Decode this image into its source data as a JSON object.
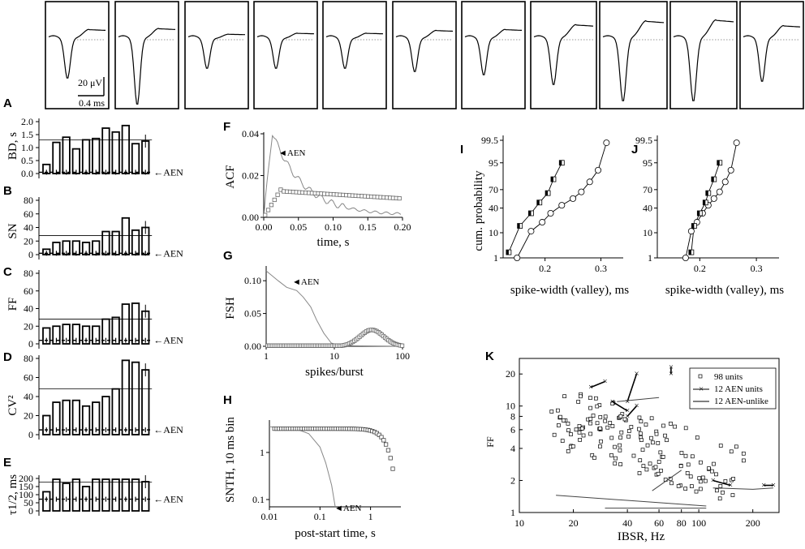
{
  "figure": {
    "panel_labels": {
      "A": "A",
      "B": "B",
      "C": "C",
      "D": "D",
      "E": "E",
      "F": "F",
      "G": "G",
      "H": "H",
      "I": "I",
      "J": "J",
      "K": "K"
    },
    "waveforms": {
      "count": 11,
      "depth": [
        0.6,
        1.0,
        0.45,
        0.45,
        0.45,
        0.5,
        0.55,
        0.7,
        0.95,
        0.95,
        0.65
      ],
      "overshoot": [
        0.2,
        0.22,
        0.1,
        0.12,
        0.12,
        0.18,
        0.2,
        0.3,
        0.38,
        0.4,
        0.28
      ],
      "scale_voltage": "20 μV",
      "scale_time": "0.4 ms"
    },
    "aen_label": "AEN",
    "bar_panels": [
      {
        "id": "A",
        "ylabel": "BD, s",
        "ticks": [
          "0.0",
          "0.5",
          "1.0",
          "1.5",
          "2.0"
        ],
        "ymax": 2.0,
        "values": [
          0.35,
          1.2,
          1.4,
          0.95,
          1.3,
          1.35,
          1.75,
          1.6,
          1.85,
          1.15,
          1.25
        ],
        "mean": 1.3,
        "aen": 0.05
      },
      {
        "id": "B",
        "ylabel": "SN",
        "ticks": [
          "0",
          "20",
          "40",
          "60",
          "80"
        ],
        "ymax": 80,
        "values": [
          8,
          18,
          20,
          20,
          18,
          20,
          34,
          34,
          54,
          36,
          40
        ],
        "mean": 28,
        "aen": 2
      },
      {
        "id": "C",
        "ylabel": "FF",
        "ticks": [
          "0",
          "20",
          "40",
          "60",
          "80"
        ],
        "ymax": 80,
        "values": [
          18,
          20,
          22,
          22,
          20,
          20,
          28,
          30,
          45,
          46,
          37
        ],
        "mean": 28,
        "aen": 4
      },
      {
        "id": "D",
        "ylabel": "CV²",
        "ticks": [
          "0",
          "20",
          "40",
          "60",
          "80"
        ],
        "ymax": 80,
        "values": [
          20,
          34,
          36,
          36,
          30,
          34,
          40,
          48,
          78,
          76,
          68
        ],
        "mean": 48,
        "aen": 5
      },
      {
        "id": "E",
        "ylabel": "τ1/2, ms",
        "ticks": [
          "0",
          "50",
          "100",
          "150",
          "200"
        ],
        "ymax": 200,
        "values": [
          118,
          195,
          170,
          195,
          150,
          195,
          195,
          195,
          195,
          195,
          180
        ],
        "mean": 178,
        "aen": 72
      }
    ],
    "F": {
      "ylabel": "ACF",
      "xlabel": "time, s",
      "xticks": [
        "0.00",
        "0.05",
        "0.10",
        "0.15",
        "0.20"
      ],
      "yticks": [
        "0.00",
        "0.02",
        "0.04"
      ],
      "xlim": [
        0,
        0.2
      ],
      "ylim": [
        0,
        0.04
      ]
    },
    "G": {
      "ylabel": "FSH",
      "xlabel": "spikes/burst",
      "xticks": [
        "1",
        "10",
        "100"
      ],
      "yticks": [
        "0.00",
        "0.05",
        "0.10"
      ],
      "xlim": [
        1,
        100
      ],
      "ylim": [
        0,
        0.12
      ]
    },
    "H": {
      "ylabel": "SNTH, 10 ms bin",
      "xlabel": "post-start time, s",
      "xticks": [
        "0.01",
        "0.1",
        "1"
      ],
      "yticks": [
        "0.1",
        "1"
      ],
      "xlim": [
        0.01,
        4
      ],
      "ylim": [
        0.07,
        4.5
      ]
    },
    "I": {
      "ylabel": "cum. probability",
      "xlabel": "spike-width (valley), ms",
      "xticks": [
        "0.2",
        "0.3"
      ],
      "yticks": [
        "1",
        "10",
        "40",
        "70",
        "95",
        "99.5"
      ],
      "aen_x": [
        0.135,
        0.155,
        0.175,
        0.19,
        0.205,
        0.215,
        0.23
      ],
      "all_x": [
        0.15,
        0.175,
        0.195,
        0.21,
        0.23,
        0.25,
        0.265,
        0.28,
        0.295,
        0.31
      ]
    },
    "J": {
      "xlabel": "spike-width (valley), ms",
      "xticks": [
        "0.2",
        "0.3"
      ],
      "yticks": [
        "1",
        "10",
        "40",
        "70",
        "95",
        "99.5"
      ],
      "aen_x": [
        0.185,
        0.19,
        0.2,
        0.21,
        0.215,
        0.225,
        0.235
      ],
      "all_x": [
        0.175,
        0.185,
        0.195,
        0.205,
        0.215,
        0.225,
        0.235,
        0.245,
        0.255,
        0.265
      ]
    },
    "K": {
      "ylabel": "FF",
      "xlabel": "IBSR, Hz",
      "xticks": [
        "10",
        "20",
        "40",
        "60",
        "80",
        "100",
        "200"
      ],
      "yticks": [
        "1",
        "2",
        "4",
        "6",
        "8",
        "10",
        "20"
      ],
      "xlim": [
        10,
        280
      ],
      "ylim": [
        1,
        28
      ],
      "legend": [
        "98 units",
        "12 AEN units",
        "12 AEN-unlike"
      ]
    }
  }
}
